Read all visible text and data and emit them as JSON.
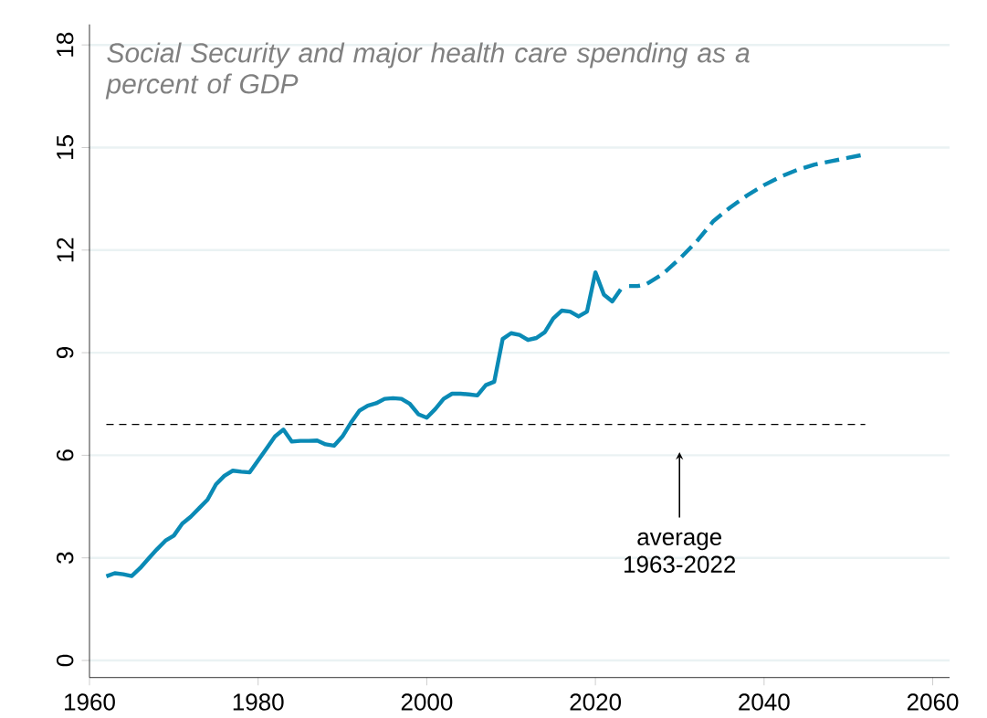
{
  "chart_data": {
    "type": "line",
    "title": "Social Security and major health care spending as a percent of GDP",
    "xlim": [
      1960,
      2062
    ],
    "xticks": [
      1960,
      1980,
      2000,
      2020,
      2040,
      2060
    ],
    "ylim": [
      -0.5,
      18.6
    ],
    "yticks": [
      0,
      3,
      6,
      9,
      12,
      15,
      18
    ],
    "grid": "y",
    "series": [
      {
        "color": "#0a8ab5",
        "line_style": "solid",
        "x": [
          1962,
          1963,
          1964,
          1965,
          1966,
          1967,
          1968,
          1969,
          1970,
          1971,
          1972,
          1973,
          1974,
          1975,
          1976,
          1977,
          1978,
          1979,
          1980,
          1981,
          1982,
          1983,
          1984,
          1985,
          1986,
          1987,
          1988,
          1989,
          1990,
          1991,
          1992,
          1993,
          1994,
          1995,
          1996,
          1997,
          1998,
          1999,
          2000,
          2001,
          2002,
          2003,
          2004,
          2005,
          2006,
          2007,
          2008,
          2009,
          2010,
          2011,
          2012,
          2013,
          2014,
          2015,
          2016,
          2017,
          2018,
          2019,
          2020,
          2021,
          2022,
          2023
        ],
        "values": [
          2.46,
          2.55,
          2.52,
          2.47,
          2.7,
          2.98,
          3.25,
          3.5,
          3.65,
          4.0,
          4.2,
          4.45,
          4.7,
          5.15,
          5.4,
          5.55,
          5.52,
          5.5,
          5.85,
          6.2,
          6.55,
          6.75,
          6.4,
          6.42,
          6.42,
          6.43,
          6.32,
          6.28,
          6.55,
          6.95,
          7.3,
          7.45,
          7.52,
          7.65,
          7.67,
          7.65,
          7.5,
          7.2,
          7.1,
          7.35,
          7.65,
          7.8,
          7.8,
          7.78,
          7.75,
          8.05,
          8.15,
          9.4,
          9.57,
          9.52,
          9.37,
          9.43,
          9.6,
          10.0,
          10.23,
          10.2,
          10.06,
          10.2,
          11.35,
          10.7,
          10.5,
          10.85
        ]
      },
      {
        "color": "#0a8ab5",
        "line_style": "dashed",
        "x": [
          2024,
          2025,
          2026,
          2028,
          2030,
          2032,
          2034,
          2036,
          2038,
          2040,
          2042,
          2044,
          2046,
          2048,
          2050,
          2052
        ],
        "values": [
          10.95,
          10.95,
          11.0,
          11.3,
          11.75,
          12.25,
          12.85,
          13.25,
          13.6,
          13.9,
          14.15,
          14.35,
          14.5,
          14.6,
          14.7,
          14.8
        ]
      }
    ],
    "ref_lines": [
      {
        "axis": "y",
        "value": 6.9,
        "label": "average 1963-2022",
        "color": "#000000",
        "line_style": "dashed"
      }
    ]
  }
}
